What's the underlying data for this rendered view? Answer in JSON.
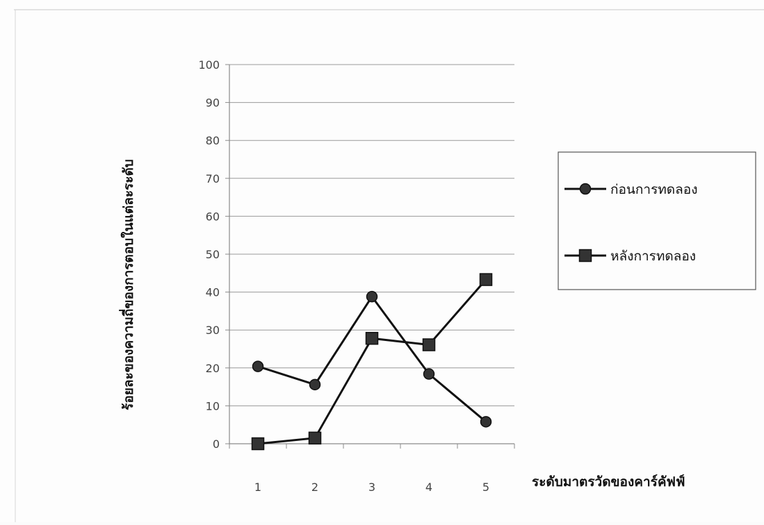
{
  "chart_data": {
    "type": "line",
    "categories": [
      "1",
      "2",
      "3",
      "4",
      "5"
    ],
    "series": [
      {
        "name": "ก่อนการทดลอง",
        "marker": "circle",
        "values": [
          20.4,
          15.6,
          38.8,
          18.4,
          5.8
        ]
      },
      {
        "name": "หลังการทดลอง",
        "marker": "square",
        "values": [
          0,
          1.5,
          27.8,
          26.1,
          43.3
        ]
      }
    ],
    "xlabel": "ระดับมาตรวัดของคาร์คัฟฟ์",
    "ylabel": "ร้อยละของความถี่ของการตอบในแต่ละระดับ",
    "ylim": [
      0,
      100
    ],
    "yticks": [
      "0",
      "10",
      "20",
      "30",
      "40",
      "50",
      "60",
      "70",
      "80",
      "90",
      "100"
    ],
    "grid": true,
    "legend_position": "right",
    "colors": {
      "line": "#111111",
      "grid": "#9a9a9a",
      "axis": "#8a8a8a",
      "marker_fill": "#333333"
    }
  }
}
